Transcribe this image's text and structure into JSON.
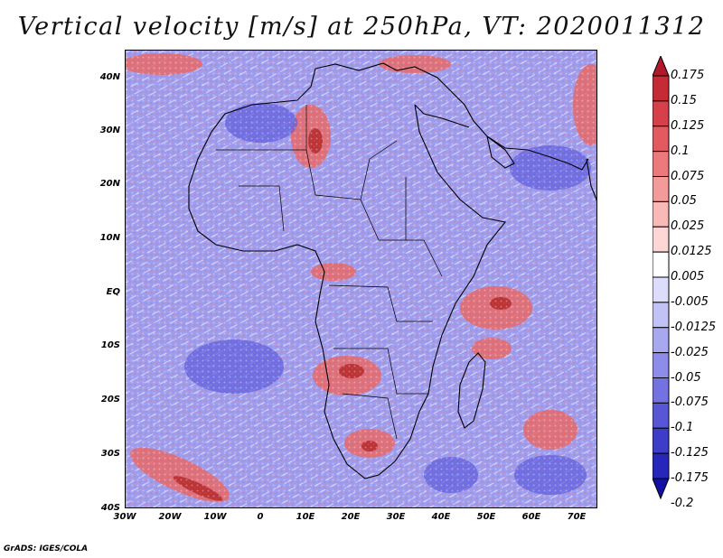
{
  "title": "Vertical velocity [m/s] at 250hPa, VT: 2020011312",
  "credit": "GrADS: IGES/COLA",
  "lat_ticks": [
    "40N",
    "30N",
    "20N",
    "10N",
    "EQ",
    "10S",
    "20S",
    "30S",
    "40S"
  ],
  "lon_ticks": [
    "30W",
    "20W",
    "10W",
    "0",
    "10E",
    "20E",
    "30E",
    "40E",
    "50E",
    "60E",
    "70E"
  ],
  "colorbar": {
    "labels": [
      "0.175",
      "0.15",
      "0.125",
      "0.1",
      "0.075",
      "0.05",
      "0.025",
      "0.0125",
      "0.005",
      "-0.005",
      "-0.0125",
      "-0.025",
      "-0.05",
      "-0.075",
      "-0.1",
      "-0.125",
      "-0.175",
      "-0.2"
    ],
    "colors": [
      "#b2182b",
      "#c52a35",
      "#d6404a",
      "#e25a60",
      "#ec7a7d",
      "#f39a9a",
      "#f8b9b7",
      "#fcd7d5",
      "#ffffff",
      "#dcdcfb",
      "#c2c2f6",
      "#a8a8f0",
      "#8d8de9",
      "#7272e0",
      "#5757d6",
      "#3d3dca",
      "#2626bb",
      "#1010a6"
    ]
  }
}
